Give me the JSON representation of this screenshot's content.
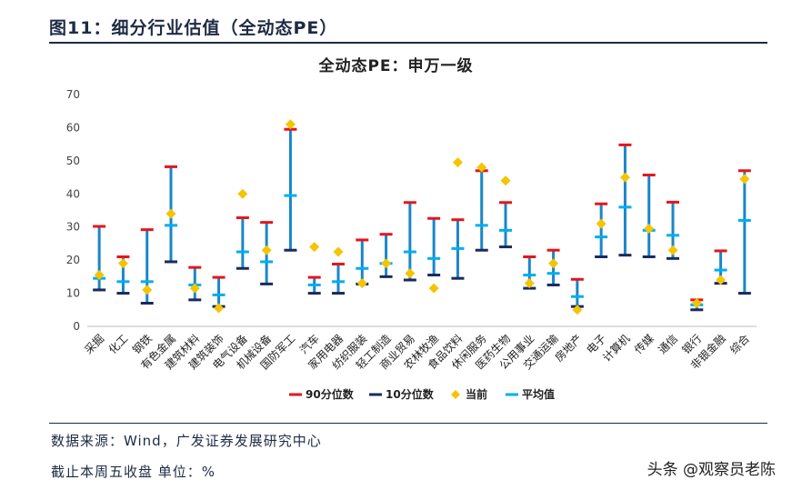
{
  "header": {
    "title": "图11：细分行业估值（全动态PE）"
  },
  "footer": {
    "source": "数据来源：Wind，广发证券发展研究中心",
    "unit": "截止本周五收盘 单位：%"
  },
  "watermark": "头条 @观察员老陈",
  "colors": {
    "p90": "#e8141b",
    "p10": "#1a2a5e",
    "current": "#f5c400",
    "mean": "#00aeef",
    "range": "#1a86c8"
  },
  "chart_data": {
    "type": "range",
    "title": "全动态PE：申万一级",
    "ylim": [
      0,
      70
    ],
    "yticks": [
      0,
      10,
      20,
      30,
      40,
      50,
      60,
      70
    ],
    "categories": [
      "采掘",
      "化工",
      "钢铁",
      "有色金属",
      "建筑材料",
      "建筑装饰",
      "电气设备",
      "机械设备",
      "国防军工",
      "汽车",
      "家用电器",
      "纺织服装",
      "轻工制造",
      "商业贸易",
      "农林牧渔",
      "食品饮料",
      "休闲服务",
      "医药生物",
      "公用事业",
      "交通运输",
      "房地产",
      "电子",
      "计算机",
      "传媒",
      "通信",
      "银行",
      "非银金融",
      "综合"
    ],
    "legend": [
      "90分位数",
      "10分位数",
      "当前",
      "平均值"
    ],
    "series": [
      {
        "name": "90分位数",
        "values": [
          30.2,
          21.0,
          29.2,
          48.2,
          17.8,
          14.8,
          32.8,
          31.4,
          59.5,
          14.8,
          18.8,
          26.1,
          27.8,
          37.4,
          32.6,
          32.2,
          47.0,
          37.4,
          21.0,
          23.0,
          14.2,
          37.0,
          54.8,
          45.7,
          37.5,
          8.0,
          22.8,
          47.0
        ]
      },
      {
        "name": "10分位数",
        "values": [
          11.0,
          10.0,
          7.0,
          19.5,
          8.0,
          6.0,
          17.5,
          12.8,
          23.0,
          10.0,
          10.0,
          12.8,
          15.0,
          14.0,
          15.5,
          14.5,
          23.0,
          24.0,
          11.5,
          12.5,
          6.0,
          21.0,
          21.5,
          21.0,
          20.5,
          5.0,
          13.0,
          10.0
        ]
      },
      {
        "name": "当前",
        "values": [
          15.5,
          19.0,
          11.0,
          34.0,
          11.5,
          5.5,
          40.0,
          23.0,
          61.0,
          24.0,
          22.5,
          13.0,
          19.0,
          16.0,
          11.5,
          49.5,
          48.0,
          44.0,
          13.0,
          19.0,
          5.0,
          31.0,
          45.0,
          29.5,
          23.0,
          7.0,
          14.0,
          44.5
        ]
      },
      {
        "name": "平均值",
        "values": [
          14.5,
          13.5,
          13.5,
          30.5,
          12.5,
          9.5,
          22.5,
          19.5,
          39.5,
          12.5,
          13.5,
          17.5,
          19.0,
          22.5,
          20.5,
          23.5,
          30.5,
          29.0,
          15.5,
          16.0,
          9.0,
          27.0,
          36.0,
          29.0,
          27.5,
          6.5,
          17.0,
          32.0
        ]
      }
    ]
  }
}
